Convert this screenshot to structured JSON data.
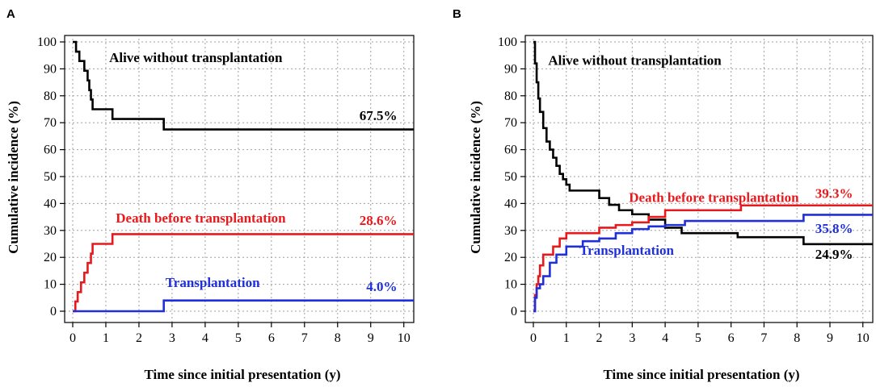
{
  "figure": {
    "colors": {
      "alive": "#000000",
      "death": "#e8191c",
      "transplant": "#1f2fd9",
      "grid": "#a0a0a0"
    }
  },
  "chart_data": [
    {
      "panel": "A",
      "type": "line",
      "step": true,
      "xlabel": "Time since initial presentation (y)",
      "ylabel": "Cumulative incidence (%)",
      "xlim": [
        0,
        10.3
      ],
      "ylim": [
        0,
        100
      ],
      "xticks": [
        0,
        1,
        2,
        3,
        4,
        5,
        6,
        7,
        8,
        9,
        10
      ],
      "yticks": [
        0,
        10,
        20,
        30,
        40,
        50,
        60,
        70,
        80,
        90,
        100
      ],
      "grid": true,
      "series": [
        {
          "key": "alive",
          "name": "Alive without transplantation",
          "end_label": "67.5%",
          "x": [
            0,
            0.1,
            0.2,
            0.35,
            0.45,
            0.5,
            0.55,
            0.6,
            0.7,
            1.2,
            2.75,
            10.3
          ],
          "y": [
            100,
            96.4,
            92.9,
            89.3,
            85.7,
            82.1,
            78.6,
            75,
            75,
            71.4,
            67.5,
            67.5
          ],
          "label_x": 1.1,
          "label_y": 92.5,
          "end_x": 9.8,
          "end_y": 71
        },
        {
          "key": "death",
          "name": "Death before transplantation",
          "end_label": "28.6%",
          "x": [
            0,
            0.08,
            0.15,
            0.25,
            0.35,
            0.45,
            0.55,
            0.6,
            0.7,
            1.2,
            10.3
          ],
          "y": [
            0,
            3.6,
            7.1,
            10.7,
            14.3,
            17.9,
            21.4,
            25,
            25,
            28.6,
            28.6
          ],
          "label_x": 1.3,
          "label_y": 33,
          "end_x": 9.8,
          "end_y": 32
        },
        {
          "key": "transplant",
          "name": "Transplantation",
          "end_label": "4.0%",
          "x": [
            0,
            2.75,
            10.3
          ],
          "y": [
            0,
            4.0,
            4.0
          ],
          "label_x": 2.8,
          "label_y": 9,
          "end_x": 9.8,
          "end_y": 7.5
        }
      ]
    },
    {
      "panel": "B",
      "type": "line",
      "step": true,
      "xlabel": "Time since initial presentation (y)",
      "ylabel": "Cumulative incidence (%)",
      "xlim": [
        0,
        10.3
      ],
      "ylim": [
        0,
        100
      ],
      "xticks": [
        0,
        1,
        2,
        3,
        4,
        5,
        6,
        7,
        8,
        9,
        10
      ],
      "yticks": [
        0,
        10,
        20,
        30,
        40,
        50,
        60,
        70,
        80,
        90,
        100
      ],
      "grid": true,
      "series": [
        {
          "key": "alive",
          "name": "Alive without transplantation",
          "end_label": "24.9%",
          "x": [
            0,
            0.05,
            0.1,
            0.15,
            0.2,
            0.3,
            0.4,
            0.5,
            0.6,
            0.7,
            0.8,
            0.9,
            1.0,
            1.1,
            1.5,
            2.0,
            2.3,
            2.6,
            3.0,
            3.5,
            4.0,
            4.5,
            5.5,
            6.2,
            7.5,
            8.2,
            10.3
          ],
          "y": [
            100,
            92,
            85,
            79,
            74,
            68,
            63,
            60,
            57,
            54,
            51,
            49,
            47,
            44.8,
            44.8,
            42,
            39.5,
            37.5,
            36,
            34,
            31,
            29,
            29,
            27.5,
            27.5,
            24.9,
            24.9
          ],
          "label_x": 0.45,
          "label_y": 91.5,
          "end_x": 9.7,
          "end_y": 19.5
        },
        {
          "key": "death",
          "name": "Death before transplantation",
          "end_label": "39.3%",
          "x": [
            0,
            0.05,
            0.1,
            0.15,
            0.2,
            0.3,
            0.4,
            0.6,
            0.8,
            1.0,
            1.5,
            2.0,
            2.5,
            3.0,
            3.5,
            4.0,
            6.3,
            10.3
          ],
          "y": [
            0,
            6,
            10,
            13,
            17,
            21,
            21,
            24,
            27,
            29,
            29,
            31,
            32,
            33,
            35,
            37.5,
            39.3,
            39.3
          ],
          "label_x": 2.9,
          "label_y": 40.5,
          "end_x": 9.7,
          "end_y": 42
        },
        {
          "key": "transplant",
          "name": "Transplantation",
          "end_label": "35.8%",
          "x": [
            0,
            0.05,
            0.1,
            0.2,
            0.3,
            0.5,
            0.7,
            1.0,
            1.5,
            2.0,
            2.5,
            3.0,
            3.5,
            4.0,
            4.6,
            5.5,
            8.2,
            10.3
          ],
          "y": [
            0,
            5,
            8.5,
            10,
            13,
            18,
            21,
            24,
            26,
            27,
            29,
            30.5,
            31.5,
            32,
            33.5,
            33.5,
            35.8,
            35.8
          ],
          "label_x": 1.4,
          "label_y": 21,
          "end_x": 9.7,
          "end_y": 29
        }
      ]
    }
  ]
}
